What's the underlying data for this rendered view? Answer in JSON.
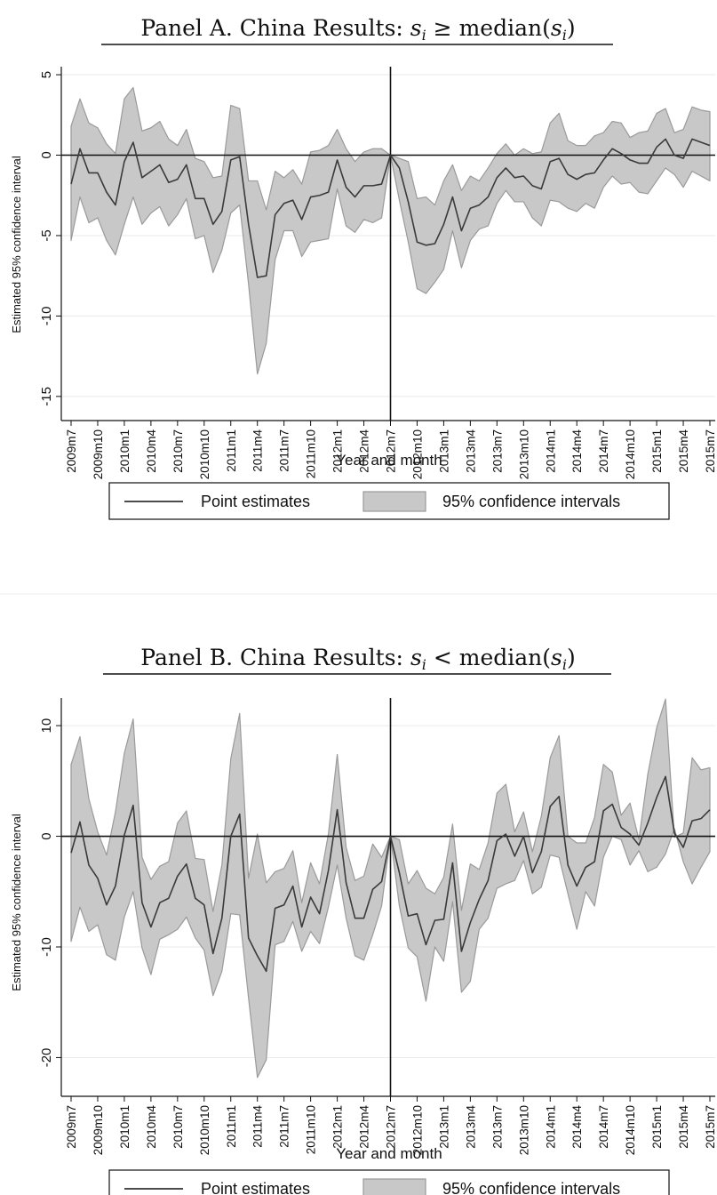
{
  "chart_data": [
    {
      "type": "line",
      "title": "Panel A. China Results: ",
      "title_math": "s",
      "title_sub": "i",
      "title_rest": " ≥ median(",
      "title_math2": "s",
      "title_sub2": "i",
      "title_end": ")",
      "xlabel": "Year and month",
      "ylabel": "Estimated 95% confidence interval",
      "ylim": [
        -16.5,
        5.5
      ],
      "yticks": [
        5,
        0,
        -5,
        -10,
        -15
      ],
      "ytick_labels": [
        "5",
        "0",
        "-5",
        "-10",
        "-15"
      ],
      "x_start": "2009m7",
      "x_end": "2015m7",
      "xtick_labels": [
        "2009m7",
        "2009m10",
        "2010m1",
        "2010m4",
        "2010m7",
        "2010m10",
        "2011m1",
        "2011m4",
        "2011m7",
        "2011m10",
        "2012m1",
        "2012m4",
        "2012m7",
        "2012m10",
        "2013m1",
        "2013m4",
        "2013m7",
        "2013m10",
        "2014m1",
        "2014m4",
        "2014m7",
        "2014m10",
        "2015m1",
        "2015m4",
        "2015m7"
      ],
      "event": "2012m7",
      "series": [
        {
          "name": "Point estimates",
          "values": [
            -1.8,
            0.4,
            -1.1,
            -1.1,
            -2.3,
            -3.1,
            -0.4,
            0.8,
            -1.4,
            -1.0,
            -0.6,
            -1.7,
            -1.5,
            -0.6,
            -2.7,
            -2.7,
            -4.3,
            -3.5,
            -0.3,
            -0.1,
            -4.3,
            -7.6,
            -7.5,
            -3.7,
            -3.0,
            -2.8,
            -4.0,
            -2.6,
            -2.5,
            -2.3,
            -0.3,
            -2.0,
            -2.6,
            -1.9,
            -1.9,
            -1.8,
            0.0,
            -0.8,
            -2.9,
            -5.4,
            -5.6,
            -5.5,
            -4.3,
            -2.6,
            -4.7,
            -3.3,
            -3.1,
            -2.6,
            -1.4,
            -0.8,
            -1.4,
            -1.3,
            -1.9,
            -2.1,
            -0.4,
            -0.2,
            -1.2,
            -1.5,
            -1.2,
            -1.1,
            -0.3,
            0.4,
            0.1,
            -0.3,
            -0.5,
            -0.5,
            0.5,
            1.0,
            0.0,
            -0.2,
            1.0,
            0.8,
            0.6
          ]
        },
        {
          "name": "95% confidence intervals",
          "lower": [
            -5.3,
            -2.6,
            -4.2,
            -3.9,
            -5.3,
            -6.2,
            -4.3,
            -2.6,
            -4.3,
            -3.6,
            -3.2,
            -4.4,
            -3.7,
            -2.7,
            -5.2,
            -5.0,
            -7.3,
            -5.9,
            -3.6,
            -3.1,
            -8.0,
            -13.6,
            -11.7,
            -6.5,
            -4.7,
            -4.7,
            -6.3,
            -5.4,
            -5.3,
            -5.2,
            -2.1,
            -4.4,
            -4.8,
            -4.0,
            -4.2,
            -3.9,
            0.0,
            -2.8,
            -5.4,
            -8.3,
            -8.6,
            -7.9,
            -7.1,
            -4.7,
            -7.0,
            -5.3,
            -4.6,
            -4.4,
            -3.0,
            -2.2,
            -2.9,
            -2.9,
            -3.9,
            -4.4,
            -2.8,
            -2.9,
            -3.3,
            -3.5,
            -3.0,
            -3.3,
            -2.0,
            -1.3,
            -1.8,
            -1.7,
            -2.3,
            -2.4,
            -1.6,
            -0.8,
            -1.2,
            -2.0,
            -1.0,
            -1.3,
            -1.6
          ],
          "upper": [
            1.8,
            3.5,
            2.0,
            1.7,
            0.7,
            0.1,
            3.5,
            4.2,
            1.5,
            1.7,
            2.1,
            1.0,
            0.6,
            1.6,
            -0.2,
            -0.4,
            -1.4,
            -1.3,
            3.1,
            2.9,
            -1.6,
            -1.6,
            -3.4,
            -1.0,
            -1.4,
            -0.9,
            -1.8,
            0.2,
            0.3,
            0.6,
            1.6,
            0.4,
            -0.4,
            0.2,
            0.4,
            0.4,
            0.0,
            -0.2,
            -0.4,
            -2.7,
            -2.6,
            -3.1,
            -1.6,
            -0.6,
            -2.2,
            -1.3,
            -1.6,
            -0.8,
            0.1,
            0.7,
            0.0,
            0.4,
            0.1,
            0.2,
            2.0,
            2.6,
            0.9,
            0.6,
            0.6,
            1.2,
            1.4,
            2.1,
            2.0,
            1.1,
            1.4,
            1.5,
            2.6,
            2.9,
            1.4,
            1.6,
            3.0,
            2.8,
            2.7
          ]
        }
      ],
      "legend": [
        "Point estimates",
        "95% confidence intervals"
      ],
      "legend_position": "bottom",
      "grid": true
    },
    {
      "type": "line",
      "title": "Panel B. China Results: ",
      "title_math": "s",
      "title_sub": "i",
      "title_rest": " < median(",
      "title_math2": "s",
      "title_sub2": "i",
      "title_end": ")",
      "xlabel": "Year and month",
      "ylabel": "Estimated 95% confidence interval",
      "ylim": [
        -23.5,
        12.5
      ],
      "yticks": [
        10,
        0,
        -10,
        -20
      ],
      "ytick_labels": [
        "10",
        "0",
        "-10",
        "-20"
      ],
      "x_start": "2009m7",
      "x_end": "2015m7",
      "xtick_labels": [
        "2009m7",
        "2009m10",
        "2010m1",
        "2010m4",
        "2010m7",
        "2010m10",
        "2011m1",
        "2011m4",
        "2011m7",
        "2011m10",
        "2012m1",
        "2012m4",
        "2012m7",
        "2012m10",
        "2013m1",
        "2013m4",
        "2013m7",
        "2013m10",
        "2014m1",
        "2014m4",
        "2014m7",
        "2014m10",
        "2015m1",
        "2015m4",
        "2015m7"
      ],
      "event": "2012m7",
      "series": [
        {
          "name": "Point estimates",
          "values": [
            -1.5,
            1.3,
            -2.6,
            -3.8,
            -6.2,
            -4.5,
            0.1,
            2.8,
            -6.0,
            -8.2,
            -6.0,
            -5.6,
            -3.6,
            -2.5,
            -5.6,
            -6.2,
            -10.6,
            -7.4,
            0.0,
            2.0,
            -9.2,
            -10.8,
            -12.2,
            -6.5,
            -6.2,
            -4.5,
            -8.2,
            -5.5,
            -7.0,
            -3.1,
            2.4,
            -4.2,
            -7.4,
            -7.4,
            -4.8,
            -4.1,
            0.0,
            -3.3,
            -7.2,
            -7.0,
            -9.8,
            -7.6,
            -7.5,
            -2.4,
            -10.4,
            -7.8,
            -5.7,
            -4.0,
            -0.4,
            0.2,
            -1.8,
            0.0,
            -3.3,
            -1.4,
            2.7,
            3.6,
            -2.6,
            -4.5,
            -2.8,
            -2.3,
            2.3,
            2.9,
            0.8,
            0.2,
            -0.8,
            1.2,
            3.5,
            5.4,
            0.3,
            -1.0,
            1.4,
            1.6,
            2.4
          ]
        },
        {
          "name": "95% confidence intervals",
          "lower": [
            -9.5,
            -6.4,
            -8.6,
            -8.0,
            -10.7,
            -11.2,
            -7.3,
            -5.0,
            -10.1,
            -12.5,
            -9.3,
            -8.9,
            -8.4,
            -7.3,
            -9.2,
            -10.3,
            -14.4,
            -12.2,
            -7.0,
            -7.1,
            -14.6,
            -21.8,
            -20.2,
            -9.8,
            -9.5,
            -7.7,
            -10.4,
            -8.6,
            -9.7,
            -6.4,
            -2.6,
            -7.4,
            -10.8,
            -11.2,
            -8.9,
            -6.3,
            0.0,
            -6.3,
            -10.1,
            -10.9,
            -14.9,
            -10.0,
            -11.3,
            -5.9,
            -14.1,
            -13.1,
            -8.4,
            -7.4,
            -4.7,
            -4.3,
            -4.0,
            -2.2,
            -5.2,
            -4.6,
            -1.7,
            -1.9,
            -5.2,
            -8.4,
            -5.0,
            -6.3,
            -1.9,
            0.0,
            -0.3,
            -2.6,
            -1.3,
            -3.2,
            -2.8,
            -1.6,
            0.7,
            -2.3,
            -4.3,
            -2.8,
            -1.4
          ]
        }
      ],
      "legend": [
        "Point estimates",
        "95% confidence intervals"
      ],
      "legend_position": "bottom",
      "grid": true
    }
  ]
}
